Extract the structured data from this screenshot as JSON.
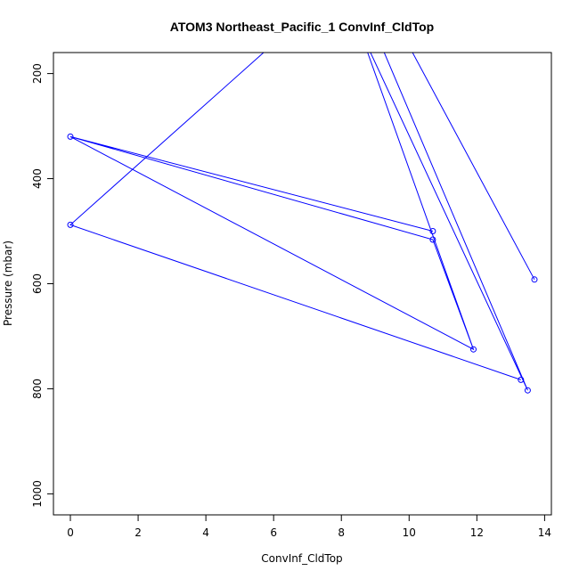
{
  "chart_data": {
    "type": "line",
    "title": "ATOM3 Northeast_Pacific_1 ConvInf_CldTop",
    "xlabel": "ConvInf_CldTop",
    "ylabel": "Pressure (mbar)",
    "xlim": [
      -0.5,
      14.2
    ],
    "ylim": [
      1040,
      160
    ],
    "y_reversed": true,
    "xticks": [
      0,
      2,
      4,
      6,
      8,
      10,
      12,
      14
    ],
    "yticks": [
      200,
      400,
      600,
      800,
      1000
    ],
    "grid": false,
    "color": "#0000ff",
    "series": [
      {
        "points": [
          {
            "x": 13.7,
            "y": 592
          },
          {
            "x": 9.6,
            "y": 100
          },
          {
            "x": 9.0,
            "y": 120
          },
          {
            "x": 13.5,
            "y": 803
          },
          {
            "x": 8.5,
            "y": 110
          },
          {
            "x": 11.9,
            "y": 725
          },
          {
            "x": 0.0,
            "y": 320
          },
          {
            "x": 10.7,
            "y": 500
          },
          {
            "x": 0.0,
            "y": 320
          },
          {
            "x": 10.7,
            "y": 516
          },
          {
            "x": 11.9,
            "y": 725
          },
          {
            "x": 8.5,
            "y": 110
          },
          {
            "x": 6.4,
            "y": 120
          },
          {
            "x": 0.0,
            "y": 488
          },
          {
            "x": 13.3,
            "y": 783
          }
        ],
        "markers": [
          {
            "x": 13.7,
            "y": 592
          },
          {
            "x": 13.5,
            "y": 803
          },
          {
            "x": 11.9,
            "y": 725
          },
          {
            "x": 0.0,
            "y": 320
          },
          {
            "x": 10.7,
            "y": 500
          },
          {
            "x": 10.7,
            "y": 516
          },
          {
            "x": 0.0,
            "y": 488
          },
          {
            "x": 13.3,
            "y": 783
          }
        ]
      }
    ]
  }
}
